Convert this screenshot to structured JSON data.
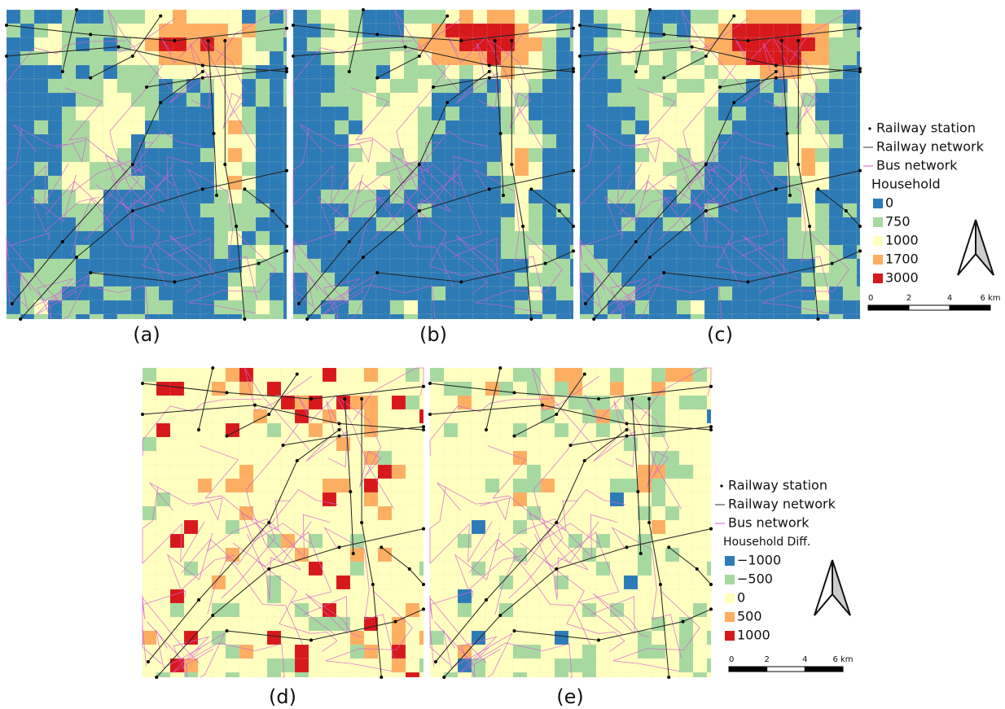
{
  "panels": [
    {
      "label": "(a)"
    },
    {
      "label": "(b)"
    },
    {
      "label": "(c)"
    },
    {
      "label": "(d)"
    },
    {
      "label": "(e)"
    }
  ],
  "legends": [
    {
      "items": [
        "Railway station",
        "Railway network",
        "Bus network"
      ],
      "title": "Household",
      "classes": [
        {
          "label": "0",
          "color": "#2c7bb6"
        },
        {
          "label": "750",
          "color": "#a6d9a0"
        },
        {
          "label": "1000",
          "color": "#ffffbf"
        },
        {
          "label": "1700",
          "color": "#fdae61"
        },
        {
          "label": "3000",
          "color": "#d7191c"
        }
      ],
      "scale": [
        "0",
        "2",
        "4",
        "6 km"
      ]
    },
    {
      "items": [
        "Railway station",
        "Railway network",
        "Bus network"
      ],
      "title": "Household Diff.",
      "classes": [
        {
          "label": "−1000",
          "color": "#2c7bb6"
        },
        {
          "label": "−500",
          "color": "#a6d9a0"
        },
        {
          "label": "0",
          "color": "#ffffbf"
        },
        {
          "label": "500",
          "color": "#fdae61"
        },
        {
          "label": "1000",
          "color": "#d7191c"
        }
      ],
      "scale": [
        "0",
        "2",
        "4",
        "6 km"
      ]
    }
  ]
}
